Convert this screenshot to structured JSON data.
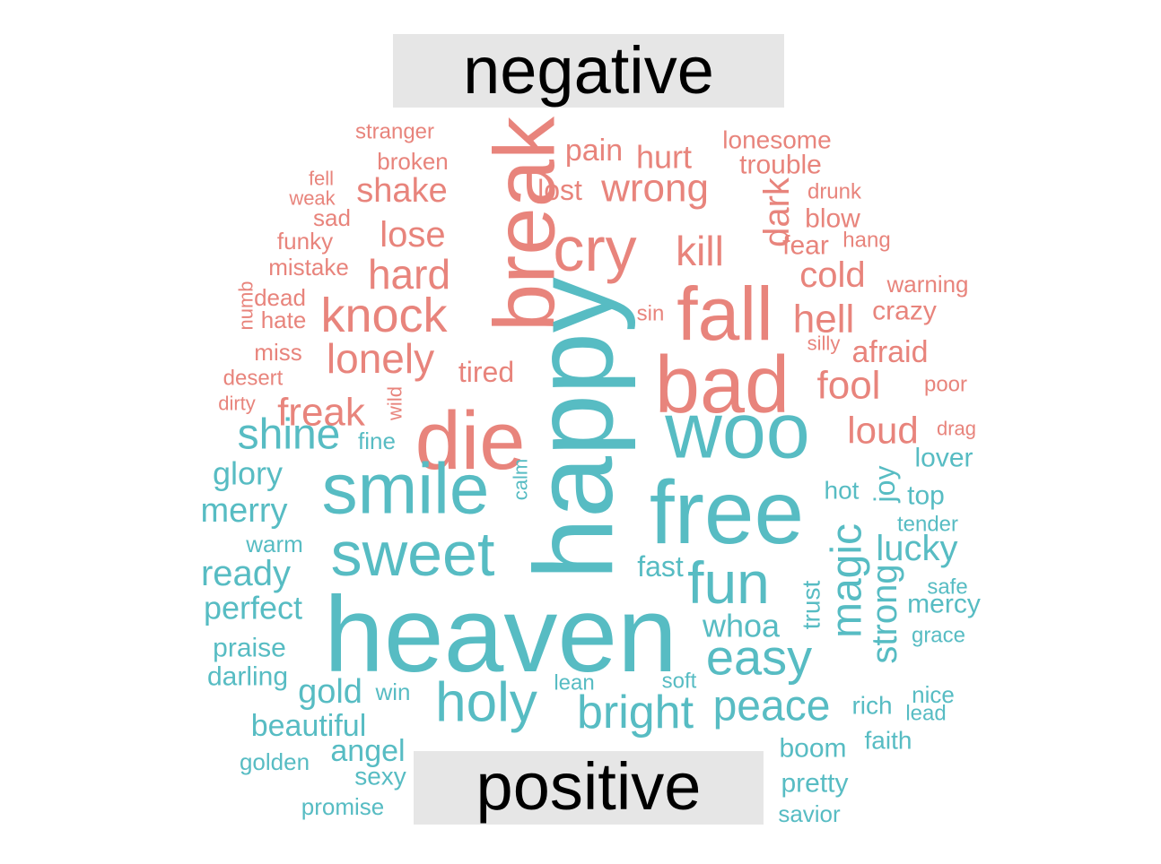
{
  "chart_data": {
    "type": "wordcloud",
    "title": "",
    "groups": [
      {
        "name": "negative",
        "color": "#E8847C"
      },
      {
        "name": "positive",
        "color": "#57BCC3"
      }
    ],
    "words": [
      {
        "text": "break",
        "group": "negative",
        "rank": 2,
        "rotate": true
      },
      {
        "text": "cry",
        "group": "negative",
        "rank": 4
      },
      {
        "text": "fall",
        "group": "negative",
        "rank": 4
      },
      {
        "text": "bad",
        "group": "negative",
        "rank": 3
      },
      {
        "text": "die",
        "group": "negative",
        "rank": 2
      },
      {
        "text": "knock",
        "group": "negative",
        "rank": 5
      },
      {
        "text": "lonely",
        "group": "negative",
        "rank": 6
      },
      {
        "text": "hard",
        "group": "negative",
        "rank": 6
      },
      {
        "text": "wrong",
        "group": "negative",
        "rank": 6
      },
      {
        "text": "freak",
        "group": "negative",
        "rank": 6
      },
      {
        "text": "kill",
        "group": "negative",
        "rank": 6
      },
      {
        "text": "lose",
        "group": "negative",
        "rank": 7
      },
      {
        "text": "shake",
        "group": "negative",
        "rank": 7
      },
      {
        "text": "hell",
        "group": "negative",
        "rank": 6
      },
      {
        "text": "cold",
        "group": "negative",
        "rank": 7
      },
      {
        "text": "fool",
        "group": "negative",
        "rank": 6
      },
      {
        "text": "loud",
        "group": "negative",
        "rank": 7
      },
      {
        "text": "dark",
        "group": "negative",
        "rank": 7,
        "rotate": true
      },
      {
        "text": "hurt",
        "group": "negative",
        "rank": 8
      },
      {
        "text": "pain",
        "group": "negative",
        "rank": 8
      },
      {
        "text": "lost",
        "group": "negative",
        "rank": 8
      },
      {
        "text": "tired",
        "group": "negative",
        "rank": 8
      },
      {
        "text": "crazy",
        "group": "negative",
        "rank": 8
      },
      {
        "text": "afraid",
        "group": "negative",
        "rank": 8
      },
      {
        "text": "fear",
        "group": "negative",
        "rank": 8
      },
      {
        "text": "blow",
        "group": "negative",
        "rank": 8
      },
      {
        "text": "trouble",
        "group": "negative",
        "rank": 8
      },
      {
        "text": "lonesome",
        "group": "negative",
        "rank": 8
      },
      {
        "text": "broken",
        "group": "negative",
        "rank": 8
      },
      {
        "text": "stranger",
        "group": "negative",
        "rank": 9
      },
      {
        "text": "mistake",
        "group": "negative",
        "rank": 9
      },
      {
        "text": "funky",
        "group": "negative",
        "rank": 9
      },
      {
        "text": "sad",
        "group": "negative",
        "rank": 9
      },
      {
        "text": "dead",
        "group": "negative",
        "rank": 9
      },
      {
        "text": "hate",
        "group": "negative",
        "rank": 9
      },
      {
        "text": "miss",
        "group": "negative",
        "rank": 9
      },
      {
        "text": "desert",
        "group": "negative",
        "rank": 9
      },
      {
        "text": "warning",
        "group": "negative",
        "rank": 9
      },
      {
        "text": "poor",
        "group": "negative",
        "rank": 9
      },
      {
        "text": "hang",
        "group": "negative",
        "rank": 10
      },
      {
        "text": "drunk",
        "group": "negative",
        "rank": 10
      },
      {
        "text": "fell",
        "group": "negative",
        "rank": 10
      },
      {
        "text": "weak",
        "group": "negative",
        "rank": 10
      },
      {
        "text": "sin",
        "group": "negative",
        "rank": 10
      },
      {
        "text": "silly",
        "group": "negative",
        "rank": 10
      },
      {
        "text": "drag",
        "group": "negative",
        "rank": 10
      },
      {
        "text": "dirty",
        "group": "negative",
        "rank": 10
      },
      {
        "text": "numb",
        "group": "negative",
        "rank": 10,
        "rotate": true
      },
      {
        "text": "wild",
        "group": "negative",
        "rank": 10,
        "rotate": true
      },
      {
        "text": "happy",
        "group": "positive",
        "rank": 1,
        "rotate": true
      },
      {
        "text": "heaven",
        "group": "positive",
        "rank": 1
      },
      {
        "text": "free",
        "group": "positive",
        "rank": 2
      },
      {
        "text": "woo",
        "group": "positive",
        "rank": 2
      },
      {
        "text": "smile",
        "group": "positive",
        "rank": 3
      },
      {
        "text": "sweet",
        "group": "positive",
        "rank": 4
      },
      {
        "text": "fun",
        "group": "positive",
        "rank": 4
      },
      {
        "text": "holy",
        "group": "positive",
        "rank": 4
      },
      {
        "text": "bright",
        "group": "positive",
        "rank": 5
      },
      {
        "text": "easy",
        "group": "positive",
        "rank": 5
      },
      {
        "text": "peace",
        "group": "positive",
        "rank": 5
      },
      {
        "text": "magic",
        "group": "positive",
        "rank": 5,
        "rotate": true
      },
      {
        "text": "shine",
        "group": "positive",
        "rank": 5
      },
      {
        "text": "strong",
        "group": "positive",
        "rank": 6,
        "rotate": true
      },
      {
        "text": "lucky",
        "group": "positive",
        "rank": 6
      },
      {
        "text": "ready",
        "group": "positive",
        "rank": 6
      },
      {
        "text": "merry",
        "group": "positive",
        "rank": 7
      },
      {
        "text": "glory",
        "group": "positive",
        "rank": 7
      },
      {
        "text": "perfect",
        "group": "positive",
        "rank": 7
      },
      {
        "text": "gold",
        "group": "positive",
        "rank": 7
      },
      {
        "text": "beautiful",
        "group": "positive",
        "rank": 7
      },
      {
        "text": "angel",
        "group": "positive",
        "rank": 7
      },
      {
        "text": "whoa",
        "group": "positive",
        "rank": 7
      },
      {
        "text": "fast",
        "group": "positive",
        "rank": 8
      },
      {
        "text": "joy",
        "group": "positive",
        "rank": 8,
        "rotate": true
      },
      {
        "text": "praise",
        "group": "positive",
        "rank": 8
      },
      {
        "text": "darling",
        "group": "positive",
        "rank": 8
      },
      {
        "text": "mercy",
        "group": "positive",
        "rank": 8
      },
      {
        "text": "top",
        "group": "positive",
        "rank": 8
      },
      {
        "text": "lover",
        "group": "positive",
        "rank": 8
      },
      {
        "text": "pretty",
        "group": "positive",
        "rank": 8
      },
      {
        "text": "boom",
        "group": "positive",
        "rank": 8
      },
      {
        "text": "faith",
        "group": "positive",
        "rank": 8
      },
      {
        "text": "sexy",
        "group": "positive",
        "rank": 8
      },
      {
        "text": "rich",
        "group": "positive",
        "rank": 8
      },
      {
        "text": "hot",
        "group": "positive",
        "rank": 8
      },
      {
        "text": "trust",
        "group": "positive",
        "rank": 8,
        "rotate": true
      },
      {
        "text": "warm",
        "group": "positive",
        "rank": 9
      },
      {
        "text": "win",
        "group": "positive",
        "rank": 9
      },
      {
        "text": "fine",
        "group": "positive",
        "rank": 9
      },
      {
        "text": "nice",
        "group": "positive",
        "rank": 9
      },
      {
        "text": "lead",
        "group": "positive",
        "rank": 9
      },
      {
        "text": "grace",
        "group": "positive",
        "rank": 9
      },
      {
        "text": "safe",
        "group": "positive",
        "rank": 9
      },
      {
        "text": "tender",
        "group": "positive",
        "rank": 9
      },
      {
        "text": "golden",
        "group": "positive",
        "rank": 9
      },
      {
        "text": "promise",
        "group": "positive",
        "rank": 9
      },
      {
        "text": "savior",
        "group": "positive",
        "rank": 9
      },
      {
        "text": "soft",
        "group": "positive",
        "rank": 9
      },
      {
        "text": "lean",
        "group": "positive",
        "rank": 9
      },
      {
        "text": "calm",
        "group": "positive",
        "rank": 10,
        "rotate": true
      }
    ]
  }
}
